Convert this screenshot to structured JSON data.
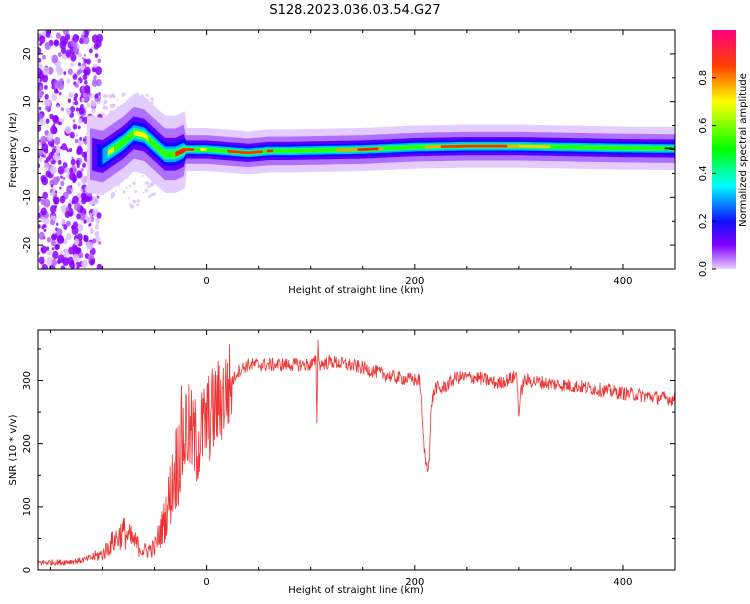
{
  "page_title": "S128.2023.036.03.54.G27",
  "colors": {
    "snr_line": "#ee3333",
    "axis": "#000000",
    "background": "#ffffff"
  },
  "chart_data": [
    {
      "type": "heatmap",
      "title": "",
      "xlabel": "Height of straight line (km)",
      "ylabel": "Frequency (Hz)",
      "xlim": [
        -162,
        450
      ],
      "ylim": [
        -25,
        25
      ],
      "x_ticks": [
        0,
        200,
        400
      ],
      "y_ticks": [
        -20,
        -10,
        0,
        10,
        20
      ],
      "colorbar": {
        "label": "Normalized spectral amplitude",
        "range": [
          0,
          1
        ],
        "ticks": [
          "0.0",
          "0.2",
          "0.4",
          "0.6",
          "0.8"
        ],
        "colormap": "hsv_reversed"
      },
      "ridge": {
        "x": [
          -110,
          -100,
          -90,
          -80,
          -70,
          -60,
          -50,
          -40,
          -30,
          -20,
          0,
          40,
          60,
          80,
          100,
          150,
          200,
          250,
          300,
          350,
          400,
          450
        ],
        "y": [
          -1,
          -1.5,
          0,
          1.5,
          3.5,
          3,
          1,
          -1,
          -1,
          0,
          0,
          -0.7,
          -0.3,
          -0.3,
          -0.2,
          0,
          0.5,
          0.7,
          0.7,
          0.5,
          0.3,
          0.2
        ]
      }
    },
    {
      "type": "line",
      "title": "",
      "xlabel": "Height of straight line (km)",
      "ylabel": "SNR (10 * v/v)",
      "xlim": [
        -162,
        450
      ],
      "ylim": [
        0,
        380
      ],
      "x_ticks": [
        0,
        200,
        400
      ],
      "y_ticks": [
        0,
        100,
        200,
        300
      ],
      "series": [
        {
          "x": [
            -162,
            -140,
            -120,
            -100,
            -90,
            -80,
            -70,
            -60,
            -50,
            -40,
            -30,
            -20,
            -10,
            0,
            10,
            20,
            30,
            40,
            60,
            80,
            100,
            105,
            106,
            107,
            108,
            120,
            150,
            180,
            205,
            208,
            210,
            212,
            214,
            216,
            220,
            225,
            240,
            260,
            280,
            295,
            298,
            300,
            302,
            304,
            306,
            310,
            330,
            360,
            400,
            450
          ],
          "y": [
            12,
            12,
            15,
            25,
            45,
            60,
            45,
            30,
            35,
            80,
            160,
            230,
            200,
            235,
            260,
            285,
            315,
            325,
            325,
            325,
            325,
            330,
            240,
            370,
            325,
            330,
            320,
            305,
            300,
            215,
            175,
            165,
            175,
            265,
            290,
            285,
            305,
            305,
            295,
            305,
            310,
            245,
            280,
            295,
            300,
            300,
            295,
            290,
            280,
            270
          ]
        }
      ]
    }
  ]
}
